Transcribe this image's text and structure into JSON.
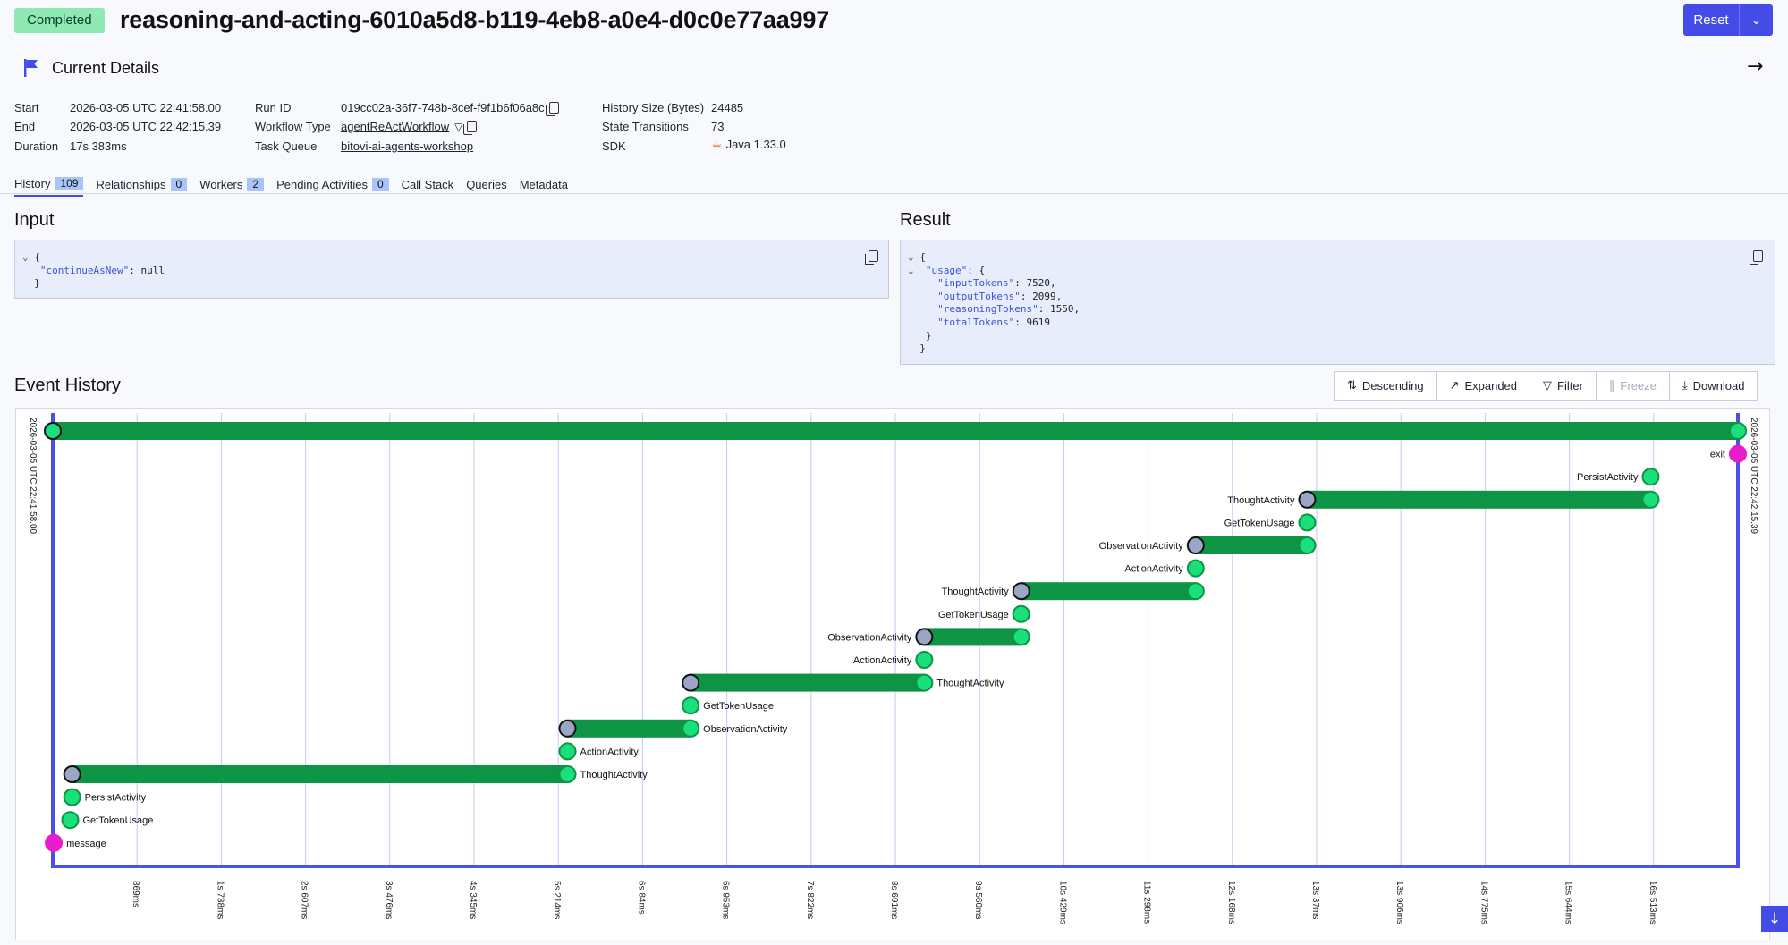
{
  "header": {
    "status": "Completed",
    "title": "reasoning-and-acting-6010a5d8-b119-4eb8-a0e4-d0c0e77aa997",
    "reset_label": "Reset",
    "reset_menu_icon": "chevron-down-icon"
  },
  "details": {
    "heading": "Current Details",
    "flag_icon": "flag-icon",
    "expand_icon": "arrow-right-icon",
    "start_label": "Start",
    "start_value": "2026-03-05 UTC 22:41:58.00",
    "end_label": "End",
    "end_value": "2026-03-05 UTC 22:42:15.39",
    "duration_label": "Duration",
    "duration_value": "17s 383ms",
    "run_id_label": "Run ID",
    "run_id_value": "019cc02a-36f7-748b-8cef-f9f1b6f06a8c",
    "workflow_type_label": "Workflow Type",
    "workflow_type_value": "agentReActWorkflow",
    "task_queue_label": "Task Queue",
    "task_queue_value": "bitovi-ai-agents-workshop",
    "history_size_label": "History Size (Bytes)",
    "history_size_value": "24485",
    "state_transitions_label": "State Transitions",
    "state_transitions_value": "73",
    "sdk_label": "SDK",
    "sdk_value": "Java 1.33.0"
  },
  "tabs": [
    {
      "label": "History",
      "count": "109",
      "active": true
    },
    {
      "label": "Relationships",
      "count": "0"
    },
    {
      "label": "Workers",
      "count": "2"
    },
    {
      "label": "Pending Activities",
      "count": "0"
    },
    {
      "label": "Call Stack"
    },
    {
      "label": "Queries"
    },
    {
      "label": "Metadata"
    }
  ],
  "input": {
    "heading": "Input",
    "key": "\"continueAsNew\"",
    "value": "null"
  },
  "result": {
    "heading": "Result",
    "usage_key": "\"usage\"",
    "fields": [
      {
        "key": "\"inputTokens\"",
        "value": "7520"
      },
      {
        "key": "\"outputTokens\"",
        "value": "2099"
      },
      {
        "key": "\"reasoningTokens\"",
        "value": "1550"
      },
      {
        "key": "\"totalTokens\"",
        "value": "9619"
      }
    ]
  },
  "event_history": {
    "heading": "Event History",
    "buttons": {
      "descending": "Descending",
      "expanded": "Expanded",
      "filter": "Filter",
      "freeze": "Freeze",
      "download": "Download"
    }
  },
  "timeline": {
    "start_label": "2026-03-05 UTC 22:41:58.00",
    "end_label": "2026-03-05 UTC 22:42:15.39",
    "total_ms": 17383,
    "ticks": [
      "869ms",
      "1s 738ms",
      "2s 607ms",
      "3s 476ms",
      "4s 345ms",
      "5s 214ms",
      "6s 84ms",
      "6s 953ms",
      "7s 822ms",
      "8s 691ms",
      "9s 560ms",
      "10s 429ms",
      "11s 298ms",
      "12s 168ms",
      "13s 37ms",
      "13s 906ms",
      "14s 775ms",
      "15s 644ms",
      "16s 513ms"
    ],
    "colors": {
      "bar": "#0d9444",
      "node": "#19e07a",
      "pending": "#9aa5c8",
      "signal": "#e81ccc",
      "axis": "#4a51e6",
      "grid": "#c7c9f2"
    },
    "events": [
      {
        "label": "",
        "start_ms": 0,
        "end_ms": 17383,
        "kind": "workflow"
      },
      {
        "label": "exit",
        "start_ms": 17383,
        "kind": "signal",
        "label_side": "left"
      },
      {
        "label": "PersistActivity",
        "start_ms": 16483,
        "kind": "point",
        "label_side": "left"
      },
      {
        "label": "ThoughtActivity",
        "start_ms": 12940,
        "end_ms": 16483,
        "kind": "activity",
        "label_side": "left"
      },
      {
        "label": "GetTokenUsage",
        "start_ms": 12940,
        "kind": "point",
        "label_side": "left"
      },
      {
        "label": "ObservationActivity",
        "start_ms": 11790,
        "end_ms": 12940,
        "kind": "activity",
        "label_side": "left"
      },
      {
        "label": "ActionActivity",
        "start_ms": 11790,
        "kind": "point",
        "label_side": "left"
      },
      {
        "label": "ThoughtActivity",
        "start_ms": 9990,
        "end_ms": 11790,
        "kind": "activity",
        "label_side": "left"
      },
      {
        "label": "GetTokenUsage",
        "start_ms": 9990,
        "kind": "point",
        "label_side": "left"
      },
      {
        "label": "ObservationActivity",
        "start_ms": 8990,
        "end_ms": 9990,
        "kind": "activity",
        "label_side": "left"
      },
      {
        "label": "ActionActivity",
        "start_ms": 8990,
        "kind": "point",
        "label_side": "left"
      },
      {
        "label": "ThoughtActivity",
        "start_ms": 6580,
        "end_ms": 8990,
        "kind": "activity",
        "label_side": "right"
      },
      {
        "label": "GetTokenUsage",
        "start_ms": 6580,
        "kind": "point",
        "label_side": "right"
      },
      {
        "label": "ObservationActivity",
        "start_ms": 5310,
        "end_ms": 6580,
        "kind": "activity",
        "label_side": "right"
      },
      {
        "label": "ActionActivity",
        "start_ms": 5310,
        "kind": "point",
        "label_side": "right"
      },
      {
        "label": "ThoughtActivity",
        "start_ms": 200,
        "end_ms": 5310,
        "kind": "activity",
        "label_side": "right"
      },
      {
        "label": "PersistActivity",
        "start_ms": 200,
        "kind": "point",
        "label_side": "right"
      },
      {
        "label": "GetTokenUsage",
        "start_ms": 180,
        "kind": "point",
        "label_side": "right"
      },
      {
        "label": "message",
        "start_ms": 10,
        "kind": "signal",
        "label_side": "right"
      }
    ]
  }
}
